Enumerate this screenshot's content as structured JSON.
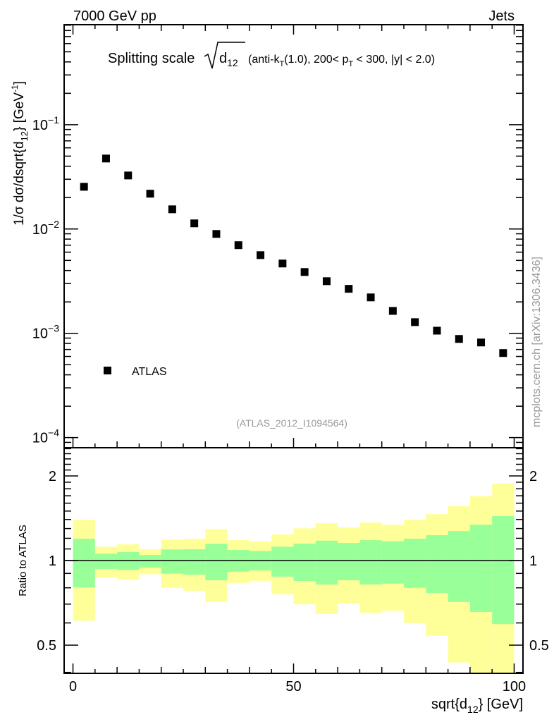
{
  "header": {
    "left": "7000 GeV pp",
    "right": "Jets",
    "side_label": "mcplots.cern.ch [arXiv:1306.3436]"
  },
  "title": {
    "main": "Splitting scale",
    "var": "d",
    "var_sub": "12",
    "p1": " (anti-k",
    "p1_sub": "T",
    "p2": "(1.0), 200< p",
    "p2_sub": "T",
    "p3": " < 300, |y| < 2.0)"
  },
  "ylabel": {
    "a": "1/σ dσ/dsqrt{d",
    "a_sub": "12",
    "b": "} [GeV",
    "b_sup": "-1",
    "c": "]"
  },
  "xlabel": {
    "a": "sqrt{d",
    "a_sub": "12",
    "b": "} [GeV]"
  },
  "ratio_ylabel": "Ratio to ATLAS",
  "analysis_id": "(ATLAS_2012_I1094564)",
  "colors": {
    "yellow": "#ffff99",
    "green": "#99ff99",
    "marker": "#000000",
    "gray": "#999999"
  },
  "chart_data": [
    {
      "type": "scatter",
      "title": "Splitting scale sqrt(d12) (anti-kT(1.0), 200< pT < 300, |y| < 2.0)",
      "xlabel": "sqrt{d12} [GeV]",
      "ylabel": "1/σ dσ/dsqrt{d12} [GeV^-1]",
      "yscale": "log",
      "xlim": [
        -2,
        102
      ],
      "ylim": [
        8e-05,
        0.91
      ],
      "yticks": [
        {
          "v": 0.1,
          "base": "10",
          "exp": "−1"
        },
        {
          "v": 0.01,
          "base": "10",
          "exp": "−2"
        },
        {
          "v": 0.001,
          "base": "10",
          "exp": "−3"
        },
        {
          "v": 0.0001,
          "base": "10",
          "exp": "−4"
        }
      ],
      "legend": {
        "label": "ATLAS",
        "placement": "bottom-left"
      },
      "x": [
        2.5,
        7.5,
        12.5,
        17.5,
        22.5,
        27.5,
        32.5,
        37.5,
        42.5,
        47.5,
        52.5,
        57.5,
        62.5,
        67.5,
        72.5,
        77.5,
        82.5,
        87.5,
        92.5,
        97.5
      ],
      "y": [
        0.0254,
        0.0474,
        0.0326,
        0.0218,
        0.01545,
        0.01133,
        0.00897,
        0.007,
        0.00562,
        0.00467,
        0.00387,
        0.00316,
        0.00267,
        0.00221,
        0.00164,
        0.00128,
        0.00106,
        0.000883,
        0.000817,
        0.000647
      ]
    },
    {
      "type": "area",
      "ylabel": "Ratio to ATLAS",
      "yscale": "log",
      "xlim": [
        -2,
        102
      ],
      "ylim": [
        0.397,
        2.52
      ],
      "xticks": [
        {
          "v": 0,
          "label": "0"
        },
        {
          "v": 50,
          "label": "50"
        },
        {
          "v": 100,
          "label": "100"
        }
      ],
      "yticks": [
        {
          "v": 2,
          "label": "2"
        },
        {
          "v": 1,
          "label": "1"
        },
        {
          "v": 0.5,
          "label": "0.5"
        }
      ],
      "bin_edges": [
        0,
        5,
        10,
        15,
        20,
        25,
        30,
        35,
        40,
        45,
        50,
        55,
        60,
        65,
        70,
        75,
        80,
        85,
        90,
        95,
        100
      ],
      "series": [
        {
          "name": "total uncertainty (yellow)",
          "upper": [
            1.396,
            1.12,
            1.142,
            1.097,
            1.187,
            1.196,
            1.295,
            1.182,
            1.169,
            1.24,
            1.302,
            1.358,
            1.312,
            1.366,
            1.342,
            1.396,
            1.462,
            1.56,
            1.695,
            1.88
          ],
          "lower": [
            0.611,
            0.871,
            0.856,
            0.894,
            0.8,
            0.781,
            0.712,
            0.833,
            0.847,
            0.759,
            0.699,
            0.645,
            0.703,
            0.651,
            0.663,
            0.599,
            0.54,
            0.434,
            0.35,
            0.3
          ]
        },
        {
          "name": "statistical uncertainty (green)",
          "upper": [
            1.196,
            1.058,
            1.072,
            1.047,
            1.095,
            1.097,
            1.147,
            1.091,
            1.082,
            1.12,
            1.149,
            1.177,
            1.155,
            1.182,
            1.171,
            1.196,
            1.231,
            1.274,
            1.342,
            1.441
          ],
          "lower": [
            0.803,
            0.933,
            0.926,
            0.944,
            0.898,
            0.891,
            0.851,
            0.913,
            0.922,
            0.877,
            0.846,
            0.822,
            0.851,
            0.822,
            0.828,
            0.8,
            0.767,
            0.712,
            0.656,
            0.594
          ]
        }
      ]
    }
  ]
}
